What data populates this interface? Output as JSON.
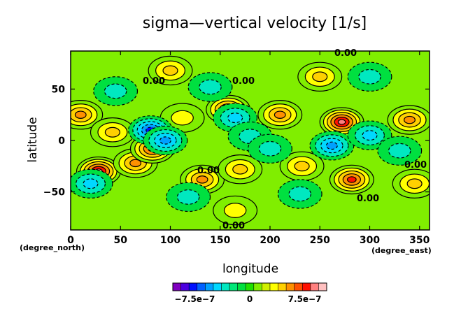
{
  "chart_data": {
    "type": "heatmap",
    "subtype": "filled contour map",
    "title": "sigma—vertical velocity [1/s]",
    "xlabel": "longitude",
    "ylabel": "latitude",
    "x_unit_label": "(degree_east)",
    "y_unit_label": "(degree_north)",
    "xlim": [
      0,
      360
    ],
    "ylim": [
      -87,
      87
    ],
    "x_ticks": [
      0,
      50,
      100,
      150,
      200,
      250,
      300,
      350
    ],
    "y_ticks": [
      -50,
      0,
      50
    ],
    "contour_labels": [
      "0.00",
      "0.00",
      "0.00",
      "0.00",
      "0.00",
      "0.00",
      "0.00"
    ],
    "colorbar": {
      "range": [
        -1.05e-06,
        1.05e-06
      ],
      "tick_labels": [
        "−7.5e−7",
        "0",
        "7.5e−7"
      ],
      "tick_values": [
        -7.5e-07,
        0,
        7.5e-07
      ],
      "colors": [
        "#8000c0",
        "#4b00e0",
        "#0010ff",
        "#0060ff",
        "#00a0ff",
        "#00d8ff",
        "#00e8c0",
        "#00e878",
        "#00e040",
        "#20e000",
        "#80ee00",
        "#d0f000",
        "#ffff00",
        "#ffd000",
        "#ff9000",
        "#ff5000",
        "#ff1000",
        "#ff8080",
        "#ffc0c0"
      ]
    },
    "features": [
      {
        "lon": 10,
        "lat": 25,
        "value": 6e-07
      },
      {
        "lon": 28,
        "lat": -30,
        "value": 9e-07
      },
      {
        "lon": 42,
        "lat": 8,
        "value": 4.5e-07
      },
      {
        "lon": 65,
        "lat": -22,
        "value": 6e-07
      },
      {
        "lon": 82,
        "lat": -8,
        "value": 7.5e-07
      },
      {
        "lon": 112,
        "lat": 22,
        "value": 3e-07
      },
      {
        "lon": 132,
        "lat": -38,
        "value": 6e-07
      },
      {
        "lon": 158,
        "lat": 30,
        "value": 7.5e-07
      },
      {
        "lon": 170,
        "lat": -28,
        "value": 4.5e-07
      },
      {
        "lon": 210,
        "lat": 25,
        "value": 6e-07
      },
      {
        "lon": 232,
        "lat": -25,
        "value": 4.5e-07
      },
      {
        "lon": 272,
        "lat": 18,
        "value": 9e-07
      },
      {
        "lon": 282,
        "lat": -38,
        "value": 7.5e-07
      },
      {
        "lon": 340,
        "lat": 20,
        "value": 6e-07
      },
      {
        "lon": 345,
        "lat": -42,
        "value": 4.5e-07
      },
      {
        "lon": 100,
        "lat": 68,
        "value": 4.5e-07
      },
      {
        "lon": 250,
        "lat": 62,
        "value": 4.5e-07
      },
      {
        "lon": 165,
        "lat": -68,
        "value": 3e-07
      },
      {
        "lon": 80,
        "lat": 10,
        "value": -7.5e-07
      },
      {
        "lon": 95,
        "lat": 0,
        "value": -6e-07
      },
      {
        "lon": 20,
        "lat": -42,
        "value": -4.5e-07
      },
      {
        "lon": 45,
        "lat": 48,
        "value": -3e-07
      },
      {
        "lon": 165,
        "lat": 22,
        "value": -4.5e-07
      },
      {
        "lon": 180,
        "lat": 4,
        "value": -3e-07
      },
      {
        "lon": 262,
        "lat": -5,
        "value": -6e-07
      },
      {
        "lon": 300,
        "lat": 5,
        "value": -4.5e-07
      },
      {
        "lon": 140,
        "lat": 52,
        "value": -3e-07
      },
      {
        "lon": 300,
        "lat": 62,
        "value": -3e-07
      },
      {
        "lon": 230,
        "lat": -52,
        "value": -3e-07
      },
      {
        "lon": 118,
        "lat": -55,
        "value": -3e-07
      },
      {
        "lon": 200,
        "lat": -8,
        "value": -3e-07
      },
      {
        "lon": 330,
        "lat": -10,
        "value": -3e-07
      }
    ]
  }
}
